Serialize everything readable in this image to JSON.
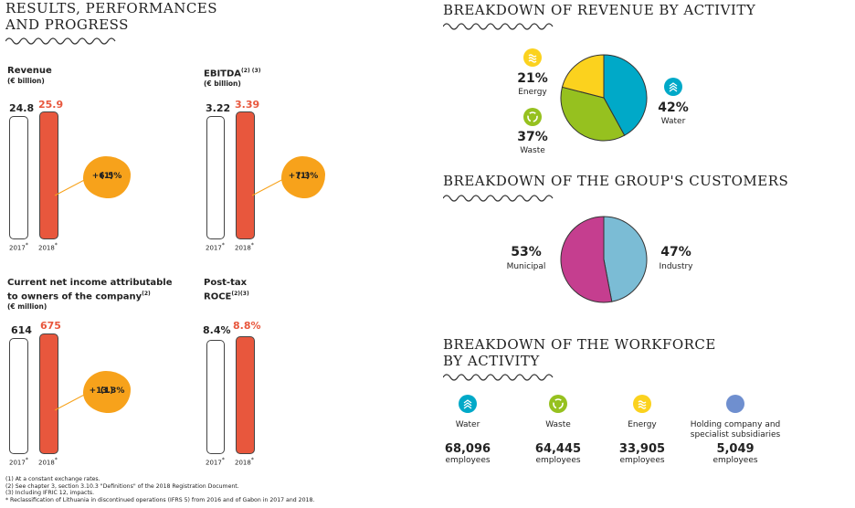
{
  "left": {
    "title_l1": "RESULTS, PERFORMANCES",
    "title_l2": "AND PROGRESS",
    "kpis": [
      {
        "label_l1": "Revenue",
        "label_l2": "",
        "sup": "",
        "unit": "(€ billion)",
        "prev": "24.8",
        "cur": "25.9",
        "growth": "+6.5%",
        "growth_sup": "(1)",
        "year_prev": "2017",
        "year_cur": "2018",
        "star": "*"
      },
      {
        "label_l1": "EBITDA",
        "label_l2": "",
        "sup": "(2) (3)",
        "unit": "(€ billion)",
        "prev": "3.22",
        "cur": "3.39",
        "growth": "+7.3%",
        "growth_sup": "(1)",
        "year_prev": "2017",
        "year_cur": "2018",
        "star": "*"
      },
      {
        "label_l1": "Current net income attributable",
        "label_l2": "to owners of the company",
        "sup": "(2)",
        "unit": "(€ million)",
        "prev": "614",
        "cur": "675",
        "growth": "+13.3%",
        "growth_sup": "(1)",
        "year_prev": "2017",
        "year_cur": "2018",
        "star": "*"
      },
      {
        "label_l1": "Post-tax",
        "label_l2": "ROCE",
        "sup": "(2)(3)",
        "unit": "",
        "prev": "8.4%",
        "cur": "8.8%",
        "growth": "",
        "growth_sup": "",
        "year_prev": "2017",
        "year_cur": "2018",
        "star": "*"
      }
    ],
    "footnotes": [
      "(1) At a constant exchange rates.",
      "(2) See chapter 3, section 3.10.3 \"Definitions\" of the 2018 Registration Document.",
      "(3) Including IFRIC 12, impacts.",
      "* Reclassification of Lithuania in discontinued operations (IFRS 5) from 2016 and of Gabon in 2017 and 2018."
    ]
  },
  "revenue": {
    "title": "BREAKDOWN OF REVENUE BY ACTIVITY",
    "slices": [
      {
        "name": "Water",
        "pct": "42%",
        "value": 42,
        "color": "#00a9c8",
        "icon": "water-wave-icon"
      },
      {
        "name": "Waste",
        "pct": "37%",
        "value": 37,
        "color": "#96c11f",
        "icon": "recycle-icon"
      },
      {
        "name": "Energy",
        "pct": "21%",
        "value": 21,
        "color": "#fbd21e",
        "icon": "energy-wave-icon"
      }
    ]
  },
  "customers": {
    "title": "BREAKDOWN OF THE GROUP'S CUSTOMERS",
    "slices": [
      {
        "name": "Industry",
        "pct": "47%",
        "value": 47,
        "color": "#7bbcd5"
      },
      {
        "name": "Municipal",
        "pct": "53%",
        "value": 53,
        "color": "#c53e8f"
      }
    ]
  },
  "workforce": {
    "title_l1": "BREAKDOWN OF THE WORKFORCE",
    "title_l2": "BY ACTIVITY",
    "items": [
      {
        "name_l1": "Water",
        "name_l2": "",
        "count": "68,096",
        "unit": "employees",
        "color": "#00a9c8",
        "icon": "water-wave-icon"
      },
      {
        "name_l1": "Waste",
        "name_l2": "",
        "count": "64,445",
        "unit": "employees",
        "color": "#96c11f",
        "icon": "recycle-icon"
      },
      {
        "name_l1": "Energy",
        "name_l2": "",
        "count": "33,905",
        "unit": "employees",
        "color": "#fbd21e",
        "icon": "energy-wave-icon"
      },
      {
        "name_l1": "Holding company and",
        "name_l2": "specialist subsidiaries",
        "count": "5,049",
        "unit": "employees",
        "color": "#6f8fcf",
        "icon": "holding-dot-icon"
      }
    ]
  }
}
